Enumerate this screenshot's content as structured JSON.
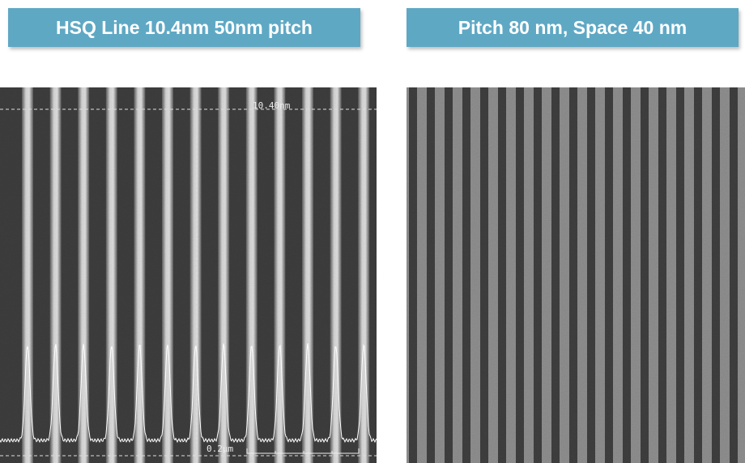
{
  "panels": [
    {
      "title": "HSQ Line 10.4nm 50nm pitch",
      "annotations": [
        "10.40nm",
        "0.2μm"
      ]
    },
    {
      "title": "Pitch 80 nm, Space 40 nm"
    }
  ]
}
